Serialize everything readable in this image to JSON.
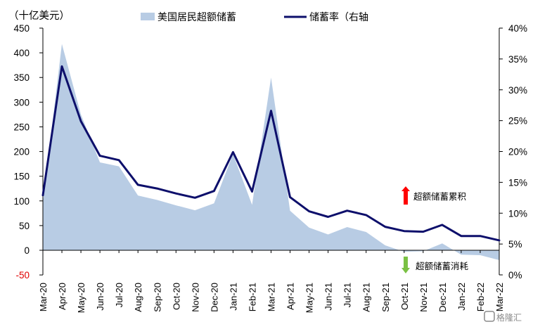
{
  "chart_data": {
    "type": "area+line",
    "unit_label": "（十亿美元）",
    "categories": [
      "Mar-20",
      "Apr-20",
      "May-20",
      "Jun-20",
      "Jul-20",
      "Aug-20",
      "Sep-20",
      "Oct-20",
      "Nov-20",
      "Dec-20",
      "Jan-21",
      "Feb-21",
      "Mar-21",
      "Apr-21",
      "May-21",
      "Jun-21",
      "Jul-21",
      "Aug-21",
      "Sep-21",
      "Oct-21",
      "Nov-21",
      "Dec-21",
      "Jan-22",
      "Feb-22",
      "Mar-22"
    ],
    "series": [
      {
        "name": "美国居民超额储蓄",
        "kind": "area",
        "axis": "left",
        "color": "#b8cce4",
        "values": [
          97,
          418,
          275,
          178,
          170,
          111,
          102,
          91,
          81,
          95,
          195,
          92,
          350,
          80,
          46,
          32,
          47,
          37,
          10,
          -3,
          -2,
          14,
          -9,
          -10,
          -20
        ]
      },
      {
        "name": "储蓄率（右轴",
        "kind": "line",
        "axis": "right",
        "color": "#0d0f6b",
        "values": [
          12.9,
          33.8,
          24.9,
          19.3,
          18.6,
          14.6,
          14.0,
          13.2,
          12.5,
          13.6,
          19.9,
          13.5,
          26.6,
          12.6,
          10.3,
          9.4,
          10.4,
          9.7,
          7.8,
          7.1,
          7.0,
          8.1,
          6.3,
          6.3,
          5.6
        ]
      }
    ],
    "y_left": {
      "min": -50,
      "max": 450,
      "ticks": [
        "-50",
        "0",
        "50",
        "100",
        "150",
        "200",
        "250",
        "300",
        "350",
        "400",
        "450"
      ]
    },
    "y_right": {
      "min": 0,
      "max": 40,
      "ticks": [
        "0%",
        "5%",
        "10%",
        "15%",
        "20%",
        "25%",
        "30%",
        "35%",
        "40%"
      ]
    },
    "annotations": {
      "up": {
        "text": "超额储蓄累积",
        "color": "#ff0000"
      },
      "down": {
        "text": "超额储蓄消耗",
        "color": "#7ac143"
      }
    },
    "legend_position": "top",
    "grid": false
  },
  "watermark": "格隆汇"
}
